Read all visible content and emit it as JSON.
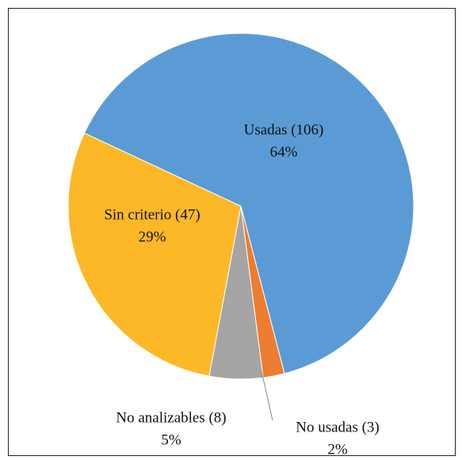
{
  "chart_data": {
    "type": "pie",
    "categories": [
      "Usadas (106)",
      "No usadas (3)",
      "No analizables (8)",
      "Sin criterio (47)"
    ],
    "values": [
      64,
      2,
      5,
      29
    ],
    "value_labels": [
      "64%",
      "2%",
      "5%",
      "29%"
    ],
    "colors": [
      "#5b9bd5",
      "#ed7d31",
      "#a5a5a5",
      "#fdb827"
    ]
  }
}
